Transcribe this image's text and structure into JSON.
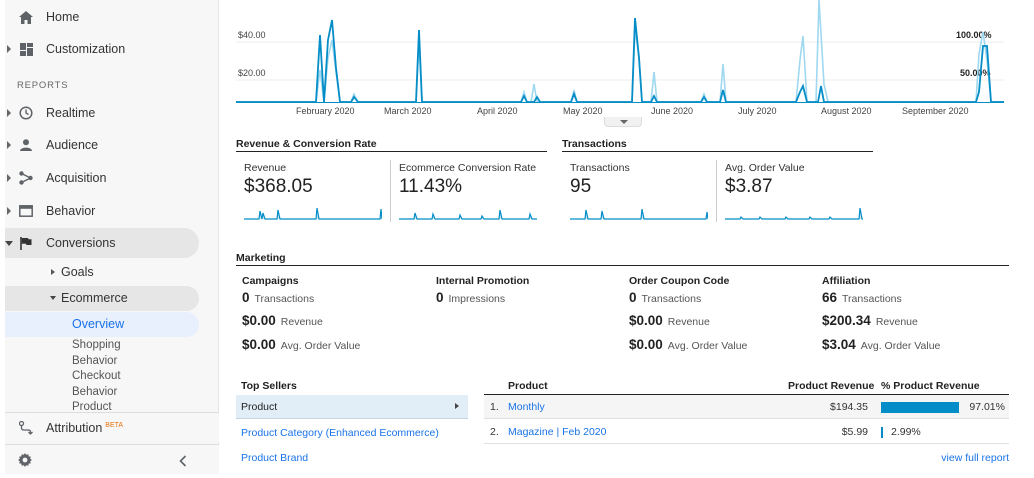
{
  "sidebar": {
    "items": [
      {
        "label": "Home"
      },
      {
        "label": "Customization"
      },
      {
        "label": "Realtime"
      },
      {
        "label": "Audience"
      },
      {
        "label": "Acquisition"
      },
      {
        "label": "Behavior"
      },
      {
        "label": "Conversions"
      }
    ],
    "reports_header": "REPORTS",
    "goals": "Goals",
    "ecommerce": "Ecommerce",
    "overview": "Overview",
    "shopping_behavior": "Shopping Behavior",
    "checkout_behavior": "Checkout Behavior",
    "product_partial": "Product",
    "attribution": "Attribution",
    "attribution_badge": "BETA"
  },
  "chart": {
    "y_labels": [
      "$40.00",
      "$20.00"
    ],
    "x_labels": [
      "February 2020",
      "March 2020",
      "April 2020",
      "May 2020",
      "June 2020",
      "July 2020",
      "August 2020",
      "September 2020"
    ],
    "right_labels": [
      "100.00%",
      "50.00%"
    ],
    "colors": {
      "revenue": "#058dc7",
      "rate": "#9fd8ef"
    }
  },
  "revenue_section": {
    "title": "Revenue & Conversion Rate",
    "cards": [
      {
        "label": "Revenue",
        "value": "$368.05"
      },
      {
        "label": "Ecommerce Conversion Rate",
        "value": "11.43%"
      }
    ]
  },
  "transactions_section": {
    "title": "Transactions",
    "cards": [
      {
        "label": "Transactions",
        "value": "95"
      },
      {
        "label": "Avg. Order Value",
        "value": "$3.87"
      }
    ]
  },
  "marketing": {
    "title": "Marketing",
    "columns": [
      {
        "title": "Campaigns",
        "v1": "0",
        "l1": "Transactions",
        "v2": "$0.00",
        "l2": "Revenue",
        "v3": "$0.00",
        "l3": "Avg. Order Value"
      },
      {
        "title": "Internal Promotion",
        "v1": "0",
        "l1": "Impressions"
      },
      {
        "title": "Order Coupon Code",
        "v1": "0",
        "l1": "Transactions",
        "v2": "$0.00",
        "l2": "Revenue",
        "v3": "$0.00",
        "l3": "Avg. Order Value"
      },
      {
        "title": "Affiliation",
        "v1": "66",
        "l1": "Transactions",
        "v2": "$200.34",
        "l2": "Revenue",
        "v3": "$3.04",
        "l3": "Avg. Order Value"
      }
    ]
  },
  "top_sellers": {
    "title": "Top Sellers",
    "selected": "Product",
    "links": [
      "Product Category (Enhanced Ecommerce)",
      "Product Brand"
    ]
  },
  "product_table": {
    "headers": {
      "product": "Product",
      "revenue": "Product Revenue",
      "pct": "% Product Revenue"
    },
    "rows": [
      {
        "num": "1.",
        "name": "Monthly",
        "revenue": "$194.35",
        "pct": "97.01%",
        "share": 0.9701
      },
      {
        "num": "2.",
        "name": "Magazine | Feb 2020",
        "revenue": "$5.99",
        "pct": "2.99%",
        "share": 0.0299
      }
    ],
    "view_full": "view full report"
  }
}
